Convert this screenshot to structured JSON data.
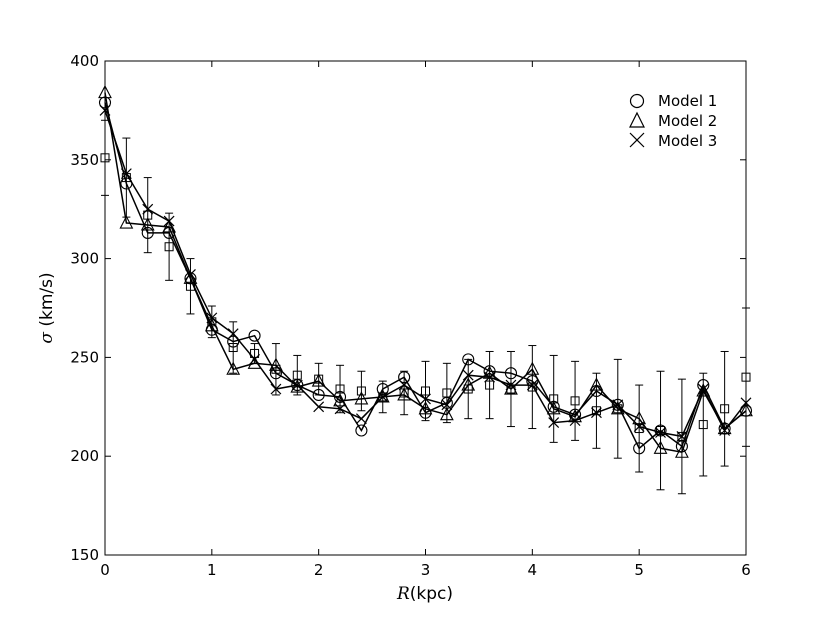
{
  "chart_data": {
    "type": "line",
    "xlabel_var": "R",
    "xlabel_unit": "(kpc)",
    "ylabel_var": "σ",
    "ylabel_unit": "(km/s)",
    "xlim": [
      0,
      6
    ],
    "ylim": [
      150,
      400
    ],
    "xticks": [
      0,
      1,
      2,
      3,
      4,
      5,
      6
    ],
    "xtick_labels": [
      "0",
      "1",
      "2",
      "3",
      "4",
      "5",
      "6"
    ],
    "yticks": [
      150,
      200,
      250,
      300,
      350,
      400
    ],
    "ytick_labels": [
      "150",
      "200",
      "250",
      "300",
      "350",
      "400"
    ],
    "grid": false,
    "legend_position": "top-right",
    "x": [
      0,
      0.2,
      0.4,
      0.6,
      0.8,
      1.0,
      1.2,
      1.4,
      1.6,
      1.8,
      2.0,
      2.2,
      2.4,
      2.6,
      2.8,
      3.0,
      3.2,
      3.4,
      3.6,
      3.8,
      4.0,
      4.2,
      4.4,
      4.6,
      4.8,
      5.0,
      5.2,
      5.4,
      5.6,
      5.8,
      6.0
    ],
    "observed": {
      "marker": "square",
      "values": [
        351,
        341,
        322,
        306,
        286,
        268,
        255,
        252,
        244,
        241,
        239,
        234,
        233,
        230,
        232,
        233,
        232,
        234,
        236,
        234,
        235,
        229,
        228,
        223,
        224,
        214,
        213,
        210,
        216,
        224,
        240
      ],
      "errors": [
        19,
        20,
        19,
        17,
        14,
        8,
        13,
        5,
        13,
        10,
        8,
        12,
        10,
        8,
        11,
        15,
        15,
        15,
        17,
        19,
        21,
        22,
        20,
        19,
        25,
        22,
        30,
        29,
        26,
        29,
        35
      ]
    },
    "series": [
      {
        "name": "Model 1",
        "marker": "circle",
        "values": [
          379,
          338,
          313,
          313,
          290,
          264,
          258,
          261,
          242,
          236,
          231,
          230,
          213,
          234,
          240,
          222,
          227,
          249,
          243,
          242,
          238,
          225,
          221,
          233,
          226,
          204,
          213,
          205,
          236,
          214,
          223
        ]
      },
      {
        "name": "Model 2",
        "marker": "triangle",
        "values": [
          384,
          318,
          317,
          316,
          290,
          266,
          244,
          247,
          246,
          235,
          238,
          228,
          229,
          230,
          231,
          224,
          221,
          236,
          242,
          234,
          244,
          224,
          220,
          236,
          224,
          219,
          204,
          202,
          233,
          214,
          223
        ]
      },
      {
        "name": "Model 3",
        "marker": "x",
        "values": [
          375,
          343,
          325,
          319,
          292,
          270,
          262,
          249,
          234,
          236,
          225,
          224,
          219,
          230,
          236,
          229,
          226,
          241,
          240,
          236,
          236,
          217,
          218,
          222,
          226,
          215,
          212,
          210,
          234,
          213,
          227
        ]
      }
    ]
  }
}
